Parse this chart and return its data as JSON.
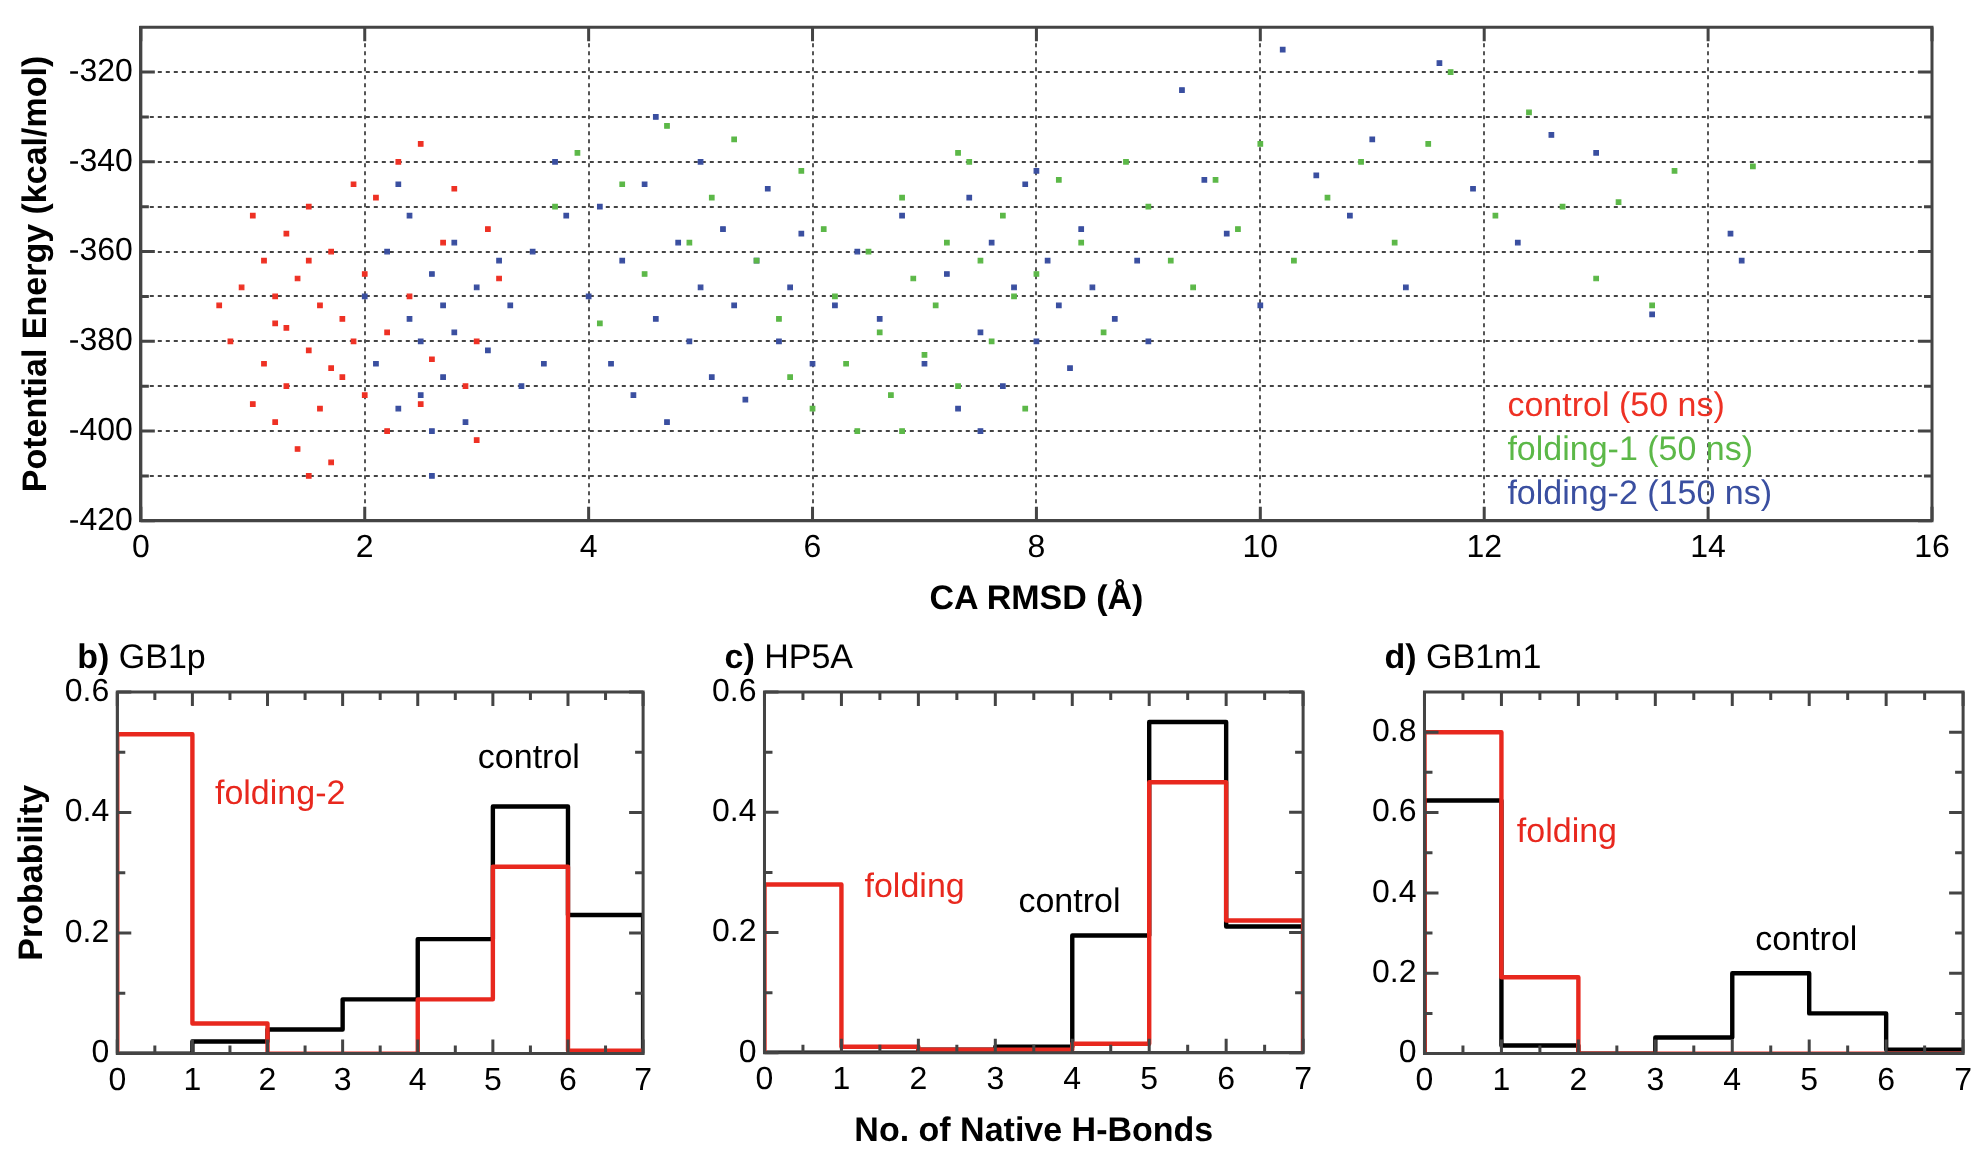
{
  "chart_data": [
    {
      "type": "scatter",
      "xlabel": "CA RMSD (Å)",
      "ylabel": "Potential Energy (kcal/mol)",
      "xlim": [
        0,
        16
      ],
      "ylim": [
        -420,
        -310
      ],
      "xticks": [
        0,
        2,
        4,
        6,
        8,
        10,
        12,
        14,
        16
      ],
      "yticks": [
        -420,
        {
          "value": -410,
          "label": null
        },
        -400,
        {
          "value": -390,
          "label": null
        },
        -380,
        {
          "value": -370,
          "label": null
        },
        -360,
        {
          "value": -350,
          "label": null
        },
        -340,
        {
          "value": -330,
          "label": null
        },
        -320
      ],
      "grid": true,
      "legend": "bottom right",
      "marker": "square",
      "series": [
        {
          "name": "control (50 ns)",
          "color": "#ee3124",
          "x": [
            0.7,
            0.8,
            0.9,
            1.0,
            1.0,
            1.1,
            1.1,
            1.2,
            1.2,
            1.3,
            1.3,
            1.3,
            1.4,
            1.4,
            1.5,
            1.5,
            1.5,
            1.6,
            1.6,
            1.7,
            1.7,
            1.8,
            1.8,
            1.9,
            1.9,
            2.0,
            2.0,
            2.1,
            2.2,
            2.3,
            2.4,
            2.5,
            2.6,
            2.7,
            2.8,
            2.9,
            3.0,
            3.1,
            3.2,
            1.2,
            1.5,
            1.7,
            2.2,
            2.5,
            3.0
          ],
          "values": [
            -372,
            -380,
            -368,
            -352,
            -394,
            -362,
            -385,
            -376,
            -398,
            -356,
            -377,
            -390,
            -366,
            -404,
            -350,
            -382,
            -410,
            -372,
            -395,
            -360,
            -407,
            -375,
            -388,
            -345,
            -380,
            -392,
            -365,
            -348,
            -400,
            -340,
            -370,
            -336,
            -384,
            -358,
            -346,
            -390,
            -402,
            -355,
            -366,
            -370,
            -362,
            -386,
            -378,
            -394,
            -380
          ]
        },
        {
          "name": "folding-1 (50 ns)",
          "color": "#5cb848",
          "x": [
            3.7,
            3.9,
            4.1,
            4.3,
            4.5,
            4.7,
            4.9,
            5.1,
            5.3,
            5.5,
            5.7,
            5.9,
            6.0,
            6.1,
            6.2,
            6.3,
            6.4,
            6.5,
            6.6,
            6.7,
            6.8,
            6.9,
            7.0,
            7.1,
            7.2,
            7.3,
            7.4,
            7.5,
            7.6,
            7.7,
            7.8,
            7.9,
            8.0,
            8.2,
            8.4,
            8.6,
            8.8,
            9.0,
            9.2,
            9.4,
            9.6,
            9.8,
            10.0,
            10.3,
            10.6,
            10.9,
            11.2,
            11.5,
            11.7,
            12.1,
            12.4,
            12.7,
            13.0,
            13.2,
            13.5,
            13.7,
            14.4,
            6.8,
            7.3,
            5.8
          ],
          "values": [
            -350,
            -338,
            -376,
            -345,
            -365,
            -332,
            -358,
            -348,
            -335,
            -362,
            -375,
            -342,
            -395,
            -355,
            -370,
            -385,
            -400,
            -360,
            -378,
            -392,
            -348,
            -366,
            -383,
            -372,
            -358,
            -390,
            -340,
            -362,
            -380,
            -352,
            -370,
            -395,
            -365,
            -344,
            -358,
            -378,
            -340,
            -350,
            -362,
            -368,
            -344,
            -355,
            -336,
            -362,
            -348,
            -340,
            -358,
            -336,
            -320,
            -352,
            -329,
            -350,
            -366,
            -349,
            -372,
            -342,
            -341,
            -400,
            -338,
            -388
          ]
        },
        {
          "name": "folding-2 (150 ns)",
          "color": "#3a4fa0",
          "x": [
            2.0,
            2.1,
            2.2,
            2.3,
            2.4,
            2.4,
            2.5,
            2.5,
            2.6,
            2.6,
            2.7,
            2.7,
            2.8,
            2.8,
            2.9,
            3.0,
            3.1,
            3.2,
            2.3,
            2.6,
            3.3,
            3.5,
            3.6,
            3.8,
            3.4,
            3.7,
            4.0,
            4.1,
            4.2,
            4.3,
            4.4,
            4.5,
            4.6,
            4.7,
            4.8,
            4.9,
            5.0,
            5.0,
            5.1,
            5.2,
            5.3,
            5.4,
            5.5,
            5.6,
            5.7,
            5.8,
            5.9,
            6.0,
            6.2,
            6.4,
            4.6,
            6.6,
            6.8,
            7.0,
            7.2,
            7.3,
            7.4,
            7.5,
            7.6,
            7.7,
            7.8,
            7.9,
            8.0,
            8.1,
            8.2,
            8.3,
            8.4,
            8.5,
            8.7,
            8.9,
            9.0,
            7.5,
            8.0,
            9.3,
            9.5,
            9.7,
            10.0,
            10.2,
            10.5,
            10.8,
            11.0,
            11.3,
            11.6,
            11.9,
            12.3,
            12.6,
            13.0,
            13.5,
            14.2,
            14.3
          ],
          "values": [
            -370,
            -385,
            -360,
            -395,
            -375,
            -352,
            -380,
            -392,
            -365,
            -410,
            -372,
            -388,
            -358,
            -378,
            -398,
            -368,
            -382,
            -362,
            -345,
            -400,
            -372,
            -360,
            -385,
            -352,
            -390,
            -340,
            -370,
            -350,
            -385,
            -362,
            -392,
            -345,
            -375,
            -398,
            -358,
            -380,
            -368,
            -340,
            -388,
            -355,
            -372,
            -393,
            -362,
            -346,
            -380,
            -368,
            -356,
            -385,
            -372,
            -360,
            -330,
            -375,
            -352,
            -385,
            -365,
            -395,
            -348,
            -378,
            -358,
            -390,
            -368,
            -345,
            -380,
            -362,
            -372,
            -386,
            -355,
            -368,
            -375,
            -362,
            -380,
            -400,
            -342,
            -324,
            -344,
            -356,
            -372,
            -315,
            -343,
            -352,
            -335,
            -368,
            -318,
            -346,
            -358,
            -334,
            -338,
            -374,
            -356,
            -362
          ]
        }
      ]
    },
    {
      "type": "histogram",
      "title": "b) GB1p",
      "ylabel": "Probability",
      "bins": [
        0,
        1,
        2,
        3,
        4,
        5,
        6,
        7
      ],
      "xlim": [
        0,
        7
      ],
      "ylim": [
        0,
        0.6
      ],
      "xticks": [
        0,
        {
          "value": 0.5,
          "label": null
        },
        1,
        {
          "value": 1.5,
          "label": null
        },
        2,
        {
          "value": 2.5,
          "label": null
        },
        3,
        {
          "value": 3.5,
          "label": null
        },
        4,
        {
          "value": 4.5,
          "label": null
        },
        5,
        {
          "value": 5.5,
          "label": null
        },
        6,
        {
          "value": 6.5,
          "label": null
        },
        7
      ],
      "yticks": [
        0,
        {
          "value": 0.1,
          "label": null
        },
        0.2,
        {
          "value": 0.3,
          "label": null
        },
        0.4,
        {
          "value": 0.5,
          "label": null
        },
        0.6
      ],
      "marker": "none",
      "series": [
        {
          "name": "folding-2",
          "color": "#e8281e",
          "values": [
            0.53,
            0.05,
            0,
            0,
            0.09,
            0.31,
            0.005
          ]
        },
        {
          "name": "control",
          "color": "#000000",
          "values": [
            0,
            0.02,
            0.04,
            0.09,
            0.19,
            0.41,
            0.23
          ]
        }
      ]
    },
    {
      "type": "histogram",
      "title": "c) HP5A",
      "xlabel": "No. of Native H-Bonds",
      "bins": [
        0,
        1,
        2,
        3,
        4,
        5,
        6,
        7
      ],
      "xlim": [
        0,
        7
      ],
      "ylim": [
        0,
        0.6
      ],
      "xticks": [
        0,
        {
          "value": 0.5,
          "label": null
        },
        1,
        {
          "value": 1.5,
          "label": null
        },
        2,
        {
          "value": 2.5,
          "label": null
        },
        3,
        {
          "value": 3.5,
          "label": null
        },
        4,
        {
          "value": 4.5,
          "label": null
        },
        5,
        {
          "value": 5.5,
          "label": null
        },
        6,
        {
          "value": 6.5,
          "label": null
        },
        7
      ],
      "yticks": [
        0,
        {
          "value": 0.1,
          "label": null
        },
        0.2,
        {
          "value": 0.3,
          "label": null
        },
        0.4,
        {
          "value": 0.5,
          "label": null
        },
        0.6
      ],
      "marker": "none",
      "series": [
        {
          "name": "folding",
          "color": "#e8281e",
          "values": [
            0.28,
            0.01,
            0.005,
            0.005,
            0.015,
            0.45,
            0.22
          ]
        },
        {
          "name": "control",
          "color": "#000000",
          "values": [
            0,
            0,
            0.005,
            0.01,
            0.195,
            0.55,
            0.21
          ]
        }
      ]
    },
    {
      "type": "histogram",
      "title": "d) GB1m1",
      "bins": [
        0,
        1,
        2,
        3,
        4,
        5,
        6,
        7
      ],
      "xlim": [
        0,
        7
      ],
      "ylim": [
        0,
        0.9
      ],
      "xticks": [
        0,
        {
          "value": 0.5,
          "label": null
        },
        1,
        {
          "value": 1.5,
          "label": null
        },
        2,
        {
          "value": 2.5,
          "label": null
        },
        3,
        {
          "value": 3.5,
          "label": null
        },
        4,
        {
          "value": 4.5,
          "label": null
        },
        5,
        {
          "value": 5.5,
          "label": null
        },
        6,
        {
          "value": 6.5,
          "label": null
        },
        7
      ],
      "yticks": [
        0,
        {
          "value": 0.1,
          "label": null
        },
        0.2,
        {
          "value": 0.3,
          "label": null
        },
        0.4,
        {
          "value": 0.5,
          "label": null
        },
        0.6,
        {
          "value": 0.7,
          "label": null
        },
        0.8
      ],
      "marker": "none",
      "series": [
        {
          "name": "folding",
          "color": "#e8281e",
          "values": [
            0.8,
            0.19,
            0,
            0,
            0,
            0,
            0
          ]
        },
        {
          "name": "control",
          "color": "#000000",
          "values": [
            0.63,
            0.02,
            0,
            0.04,
            0.2,
            0.1,
            0.01
          ]
        }
      ]
    }
  ]
}
